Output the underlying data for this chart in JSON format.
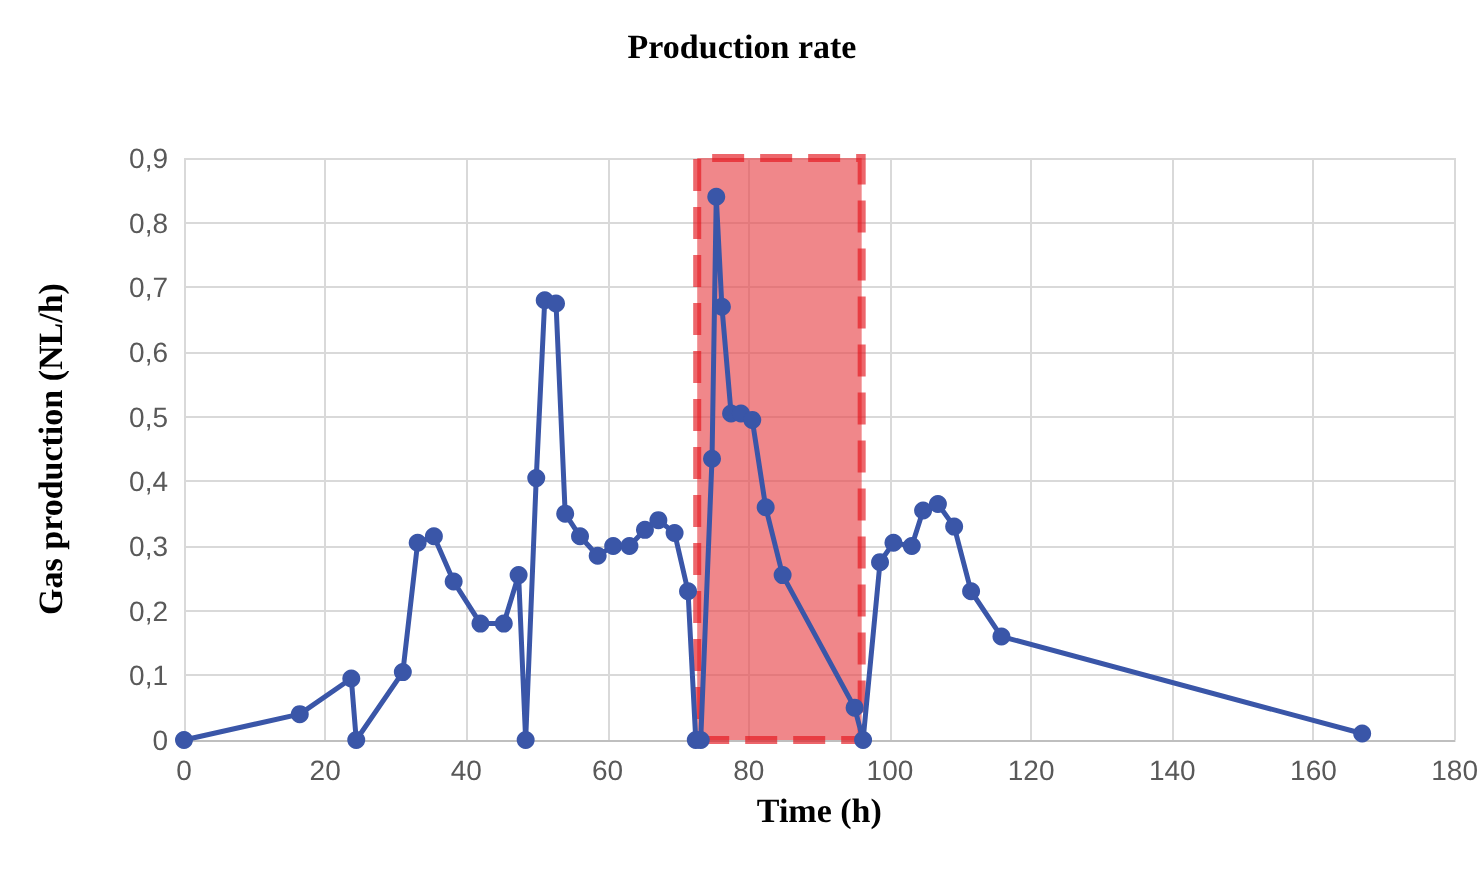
{
  "chart_data": {
    "type": "line",
    "title": "Production rate",
    "xlabel": "Time (h)",
    "ylabel": "Gas production (NL/h)",
    "x": [
      0,
      16.4,
      23.7,
      24.4,
      31,
      33.1,
      35.4,
      38.2,
      42,
      45.3,
      47.4,
      48.4,
      49.9,
      51.1,
      52.7,
      54,
      56.1,
      58.6,
      60.8,
      63.1,
      65.3,
      67.2,
      69.5,
      71.4,
      72.5,
      73.2,
      74.8,
      75.4,
      76.2,
      77.5,
      78.9,
      80.5,
      82.4,
      84.8,
      95,
      96.2,
      98.6,
      100.5,
      103.1,
      104.7,
      106.8,
      109.1,
      111.5,
      115.8,
      166.9
    ],
    "series": [
      {
        "color": "#3a56a8",
        "values": [
          0,
          0.04,
          0.095,
          0,
          0.105,
          0.305,
          0.315,
          0.245,
          0.18,
          0.18,
          0.255,
          0,
          0.405,
          0.68,
          0.675,
          0.35,
          0.315,
          0.285,
          0.3,
          0.3,
          0.325,
          0.34,
          0.32,
          0.23,
          0,
          0,
          0.435,
          0.84,
          0.67,
          0.505,
          0.505,
          0.495,
          0.36,
          0.255,
          0.05,
          0,
          0.275,
          0.305,
          0.3,
          0.355,
          0.365,
          0.33,
          0.23,
          0.16,
          0.01
        ]
      }
    ],
    "xlim": [
      0,
      180
    ],
    "xticks": [
      0,
      20,
      40,
      60,
      80,
      100,
      120,
      140,
      160,
      180
    ],
    "ylim": [
      0,
      0.9
    ],
    "yticks": [
      0,
      {
        "value": 0.1,
        "label": "0,1"
      },
      {
        "value": 0.2,
        "label": "0,2"
      },
      {
        "value": 0.3,
        "label": "0,3"
      },
      {
        "value": 0.4,
        "label": "0,4"
      },
      {
        "value": 0.5,
        "label": "0,5"
      },
      {
        "value": 0.6,
        "label": "0,6"
      },
      {
        "value": 0.7,
        "label": "0,7"
      },
      {
        "value": 0.8,
        "label": "0,8"
      },
      {
        "value": 0.9,
        "label": "0,9"
      }
    ],
    "bands": [
      {
        "axis": "x",
        "from": 72.7,
        "to": 96,
        "color": "#e8474c"
      }
    ],
    "grid": true,
    "marker": "circle",
    "line_style": "solid"
  }
}
